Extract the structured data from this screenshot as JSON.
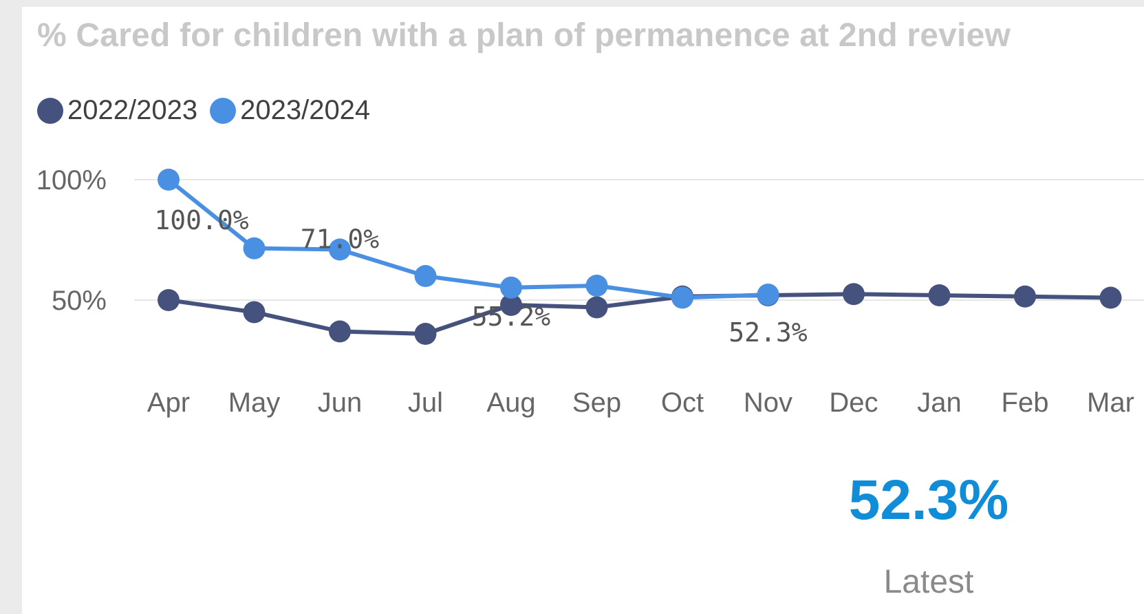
{
  "chart_data": {
    "type": "line",
    "title": "% Cared for children with a plan of permanence at 2nd review",
    "categories": [
      "Apr",
      "May",
      "Jun",
      "Jul",
      "Aug",
      "Sep",
      "Oct",
      "Nov",
      "Dec",
      "Jan",
      "Feb",
      "Mar"
    ],
    "y_ticks": [
      "100%",
      "50%"
    ],
    "ylim": [
      0,
      100
    ],
    "grid": true,
    "legend_position": "top-left",
    "series": [
      {
        "name": "2022/2023",
        "color": "#45527e",
        "values": [
          50.0,
          45.0,
          37.0,
          36.0,
          48.0,
          47.0,
          51.5,
          52.0,
          52.5,
          52.0,
          51.5,
          51.0
        ]
      },
      {
        "name": "2023/2024",
        "color": "#4a90e2",
        "values": [
          100.0,
          71.5,
          71.0,
          60.0,
          55.2,
          56.0,
          51.0,
          52.3,
          null,
          null,
          null,
          null
        ]
      }
    ],
    "data_labels": [
      {
        "category": "Apr",
        "text": "100.0%"
      },
      {
        "category": "Jun",
        "text": "71.0%"
      },
      {
        "category": "Aug",
        "text": "55.2%"
      },
      {
        "category": "Nov",
        "text": "52.3%"
      }
    ]
  },
  "kpi": {
    "value": "52.3%",
    "label": "Latest"
  }
}
